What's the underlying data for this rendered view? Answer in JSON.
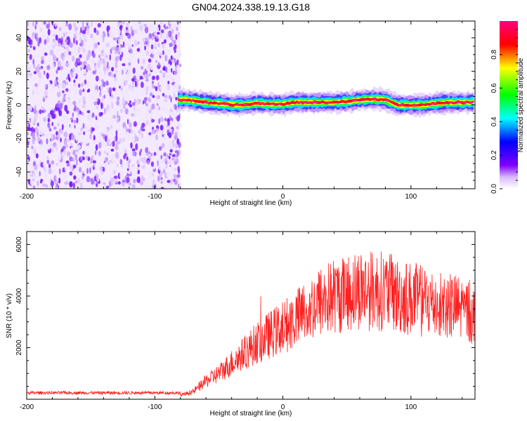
{
  "title": "GN04.2024.338.19.13.G18",
  "chart_data": [
    {
      "type": "heatmap",
      "xlabel": "Height of straight line (km)",
      "ylabel": "Frequency (Hz)",
      "xlim": [
        -200,
        150
      ],
      "ylim": [
        -50,
        50
      ],
      "xticks": [
        -200,
        -100,
        0,
        100
      ],
      "yticks": [
        -40,
        -20,
        0,
        20,
        40
      ],
      "noise_region_x": [
        -200,
        -80
      ],
      "ridge": {
        "x": [
          -82,
          -75,
          -65,
          -55,
          -45,
          -40,
          -30,
          -20,
          -10,
          0,
          10,
          20,
          30,
          40,
          50,
          55,
          60,
          70,
          80,
          85,
          90,
          100,
          110,
          120,
          130,
          140,
          150
        ],
        "freq": [
          3,
          3,
          2,
          1,
          0.5,
          0,
          0,
          1,
          0.5,
          0.5,
          1.5,
          1.5,
          1.5,
          1.5,
          2,
          2.5,
          3,
          3.5,
          3,
          1.5,
          0,
          0,
          0,
          1,
          1.5,
          1.5,
          1.5
        ]
      },
      "colorbar": {
        "label": "Normalized spectral amplitude",
        "ticks": [
          0.0,
          0.2,
          0.4,
          0.6,
          0.8
        ],
        "range": [
          0,
          1
        ],
        "colors": [
          "#ffffff",
          "#8000ff",
          "#0000ff",
          "#00ffff",
          "#00ff00",
          "#ffff00",
          "#ff0000",
          "#ff0080"
        ]
      }
    },
    {
      "type": "line",
      "xlabel": "Height of straight line (km)",
      "ylabel": "SNR (10 * v/v)",
      "xlim": [
        -200,
        150
      ],
      "ylim": [
        0,
        6500
      ],
      "xticks": [
        -200,
        -100,
        0,
        100
      ],
      "yticks": [
        2000,
        4000,
        6000
      ],
      "color": "#ff2020",
      "envelope": {
        "x": [
          -200,
          -80,
          -70,
          -60,
          -50,
          -40,
          -30,
          -20,
          -10,
          0,
          10,
          20,
          30,
          40,
          50,
          60,
          70,
          80,
          90,
          100,
          110,
          120,
          130,
          140,
          150
        ],
        "y": [
          150,
          150,
          300,
          700,
          1000,
          1400,
          1800,
          2200,
          2500,
          2800,
          3100,
          3500,
          3800,
          4000,
          4100,
          4300,
          4200,
          4200,
          4000,
          3900,
          3800,
          3700,
          3600,
          3500,
          3300
        ]
      }
    }
  ]
}
